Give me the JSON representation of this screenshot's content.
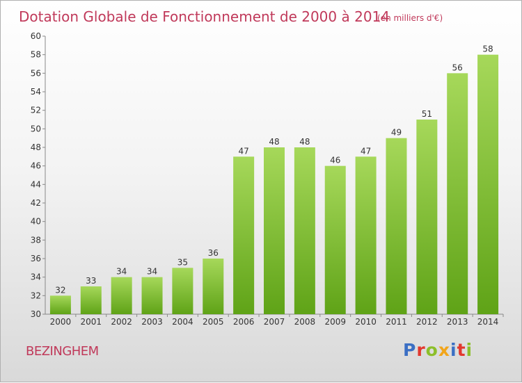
{
  "header": {
    "title": "Dotation Globale de Fonctionnement de 2000 à 2014",
    "unit": "(en milliers d'€)"
  },
  "footer": {
    "commune": "BEZINGHEM",
    "logo": "Proxiti"
  },
  "colors": {
    "bar_light": "#a6d85a",
    "bar_dark": "#5fa317",
    "title": "#c0395a",
    "logo_letters": [
      "#3b6fc4",
      "#e2382e",
      "#8cbf2a",
      "#f2a51a",
      "#3b6fc4",
      "#e2382e",
      "#8cbf2a"
    ]
  },
  "chart_data": {
    "type": "bar",
    "title": "Dotation Globale de Fonctionnement de 2000 à 2014",
    "subtitle": "(en milliers d'€)",
    "categories": [
      "2000",
      "2001",
      "2002",
      "2003",
      "2004",
      "2005",
      "2006",
      "2007",
      "2008",
      "2009",
      "2010",
      "2011",
      "2012",
      "2013",
      "2014"
    ],
    "values": [
      32,
      33,
      34,
      34,
      35,
      36,
      47,
      48,
      48,
      46,
      47,
      49,
      51,
      56,
      58
    ],
    "ylim": [
      30,
      60
    ],
    "yticks": [
      30,
      32,
      34,
      36,
      38,
      40,
      42,
      44,
      46,
      48,
      50,
      52,
      54,
      56,
      58,
      60
    ],
    "grid": false,
    "legend": "none"
  }
}
